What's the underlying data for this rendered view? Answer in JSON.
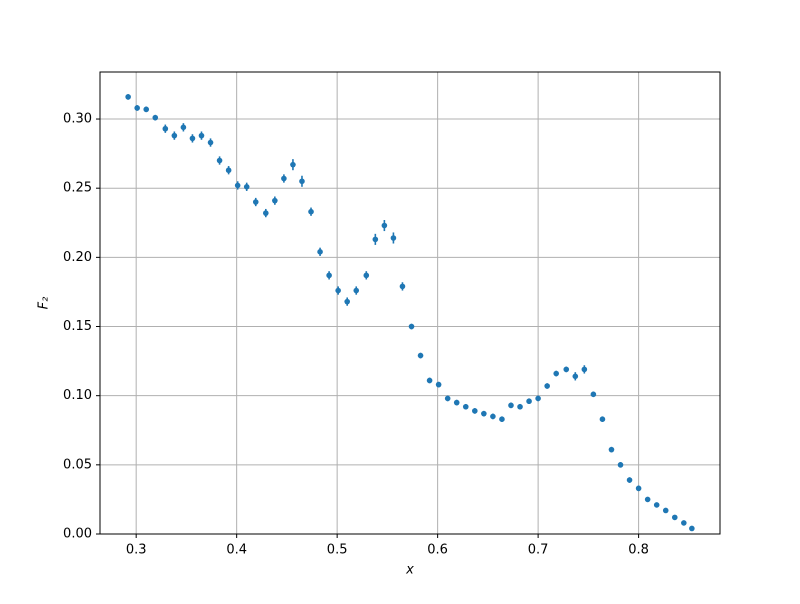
{
  "chart_data": {
    "type": "errorbar-scatter",
    "xlabel": "x",
    "ylabel": "F₂",
    "x": [
      0.292,
      0.301,
      0.31,
      0.319,
      0.329,
      0.338,
      0.347,
      0.356,
      0.365,
      0.374,
      0.383,
      0.392,
      0.401,
      0.41,
      0.419,
      0.429,
      0.438,
      0.447,
      0.456,
      0.465,
      0.474,
      0.483,
      0.492,
      0.501,
      0.51,
      0.519,
      0.529,
      0.538,
      0.547,
      0.556,
      0.565,
      0.574,
      0.583,
      0.592,
      0.601,
      0.61,
      0.619,
      0.628,
      0.637,
      0.646,
      0.655,
      0.664,
      0.673,
      0.682,
      0.691,
      0.7,
      0.709,
      0.718,
      0.728,
      0.737,
      0.746,
      0.755,
      0.764,
      0.773,
      0.782,
      0.791,
      0.8,
      0.809,
      0.818,
      0.827,
      0.836,
      0.845,
      0.853
    ],
    "series": [
      {
        "color": "#1f77b4",
        "values": [
          0.316,
          0.308,
          0.307,
          0.301,
          0.293,
          0.288,
          0.294,
          0.286,
          0.288,
          0.283,
          0.27,
          0.263,
          0.252,
          0.251,
          0.24,
          0.232,
          0.241,
          0.257,
          0.267,
          0.255,
          0.233,
          0.204,
          0.187,
          0.176,
          0.168,
          0.176,
          0.187,
          0.213,
          0.223,
          0.214,
          0.179,
          0.15,
          0.129,
          0.111,
          0.108,
          0.098,
          0.095,
          0.092,
          0.089,
          0.087,
          0.085,
          0.083,
          0.093,
          0.092,
          0.096,
          0.098,
          0.107,
          0.116,
          0.119,
          0.114,
          0.119,
          0.101,
          0.083,
          0.061,
          0.05,
          0.039,
          0.033,
          0.025,
          0.021,
          0.017,
          0.012,
          0.008,
          0.004
        ],
        "errors": [
          0.002,
          0.002,
          0.002,
          0.002,
          0.003,
          0.003,
          0.003,
          0.003,
          0.003,
          0.003,
          0.003,
          0.003,
          0.003,
          0.003,
          0.003,
          0.003,
          0.003,
          0.003,
          0.004,
          0.004,
          0.003,
          0.003,
          0.003,
          0.003,
          0.003,
          0.003,
          0.003,
          0.004,
          0.004,
          0.004,
          0.003,
          0.002,
          0.002,
          0.002,
          0.002,
          0.002,
          0.002,
          0.002,
          0.002,
          0.002,
          0.002,
          0.002,
          0.002,
          0.002,
          0.002,
          0.002,
          0.002,
          0.002,
          0.002,
          0.003,
          0.003,
          0.002,
          0.002,
          0.002,
          0.002,
          0.002,
          0.002,
          0.001,
          0.001,
          0.001,
          0.001,
          0.001,
          0.001
        ]
      }
    ],
    "xlim": [
      0.264,
      0.881
    ],
    "ylim": [
      0,
      0.334
    ],
    "xticks": [
      0.3,
      0.4,
      0.5,
      0.6,
      0.7,
      0.8
    ],
    "yticks": [
      {
        "value": 0,
        "label": "0.00"
      },
      0.05,
      {
        "value": 0.1,
        "label": "0.10"
      },
      0.15,
      {
        "value": 0.2,
        "label": "0.20"
      },
      0.25,
      {
        "value": 0.3,
        "label": "0.30"
      }
    ],
    "grid": true
  }
}
